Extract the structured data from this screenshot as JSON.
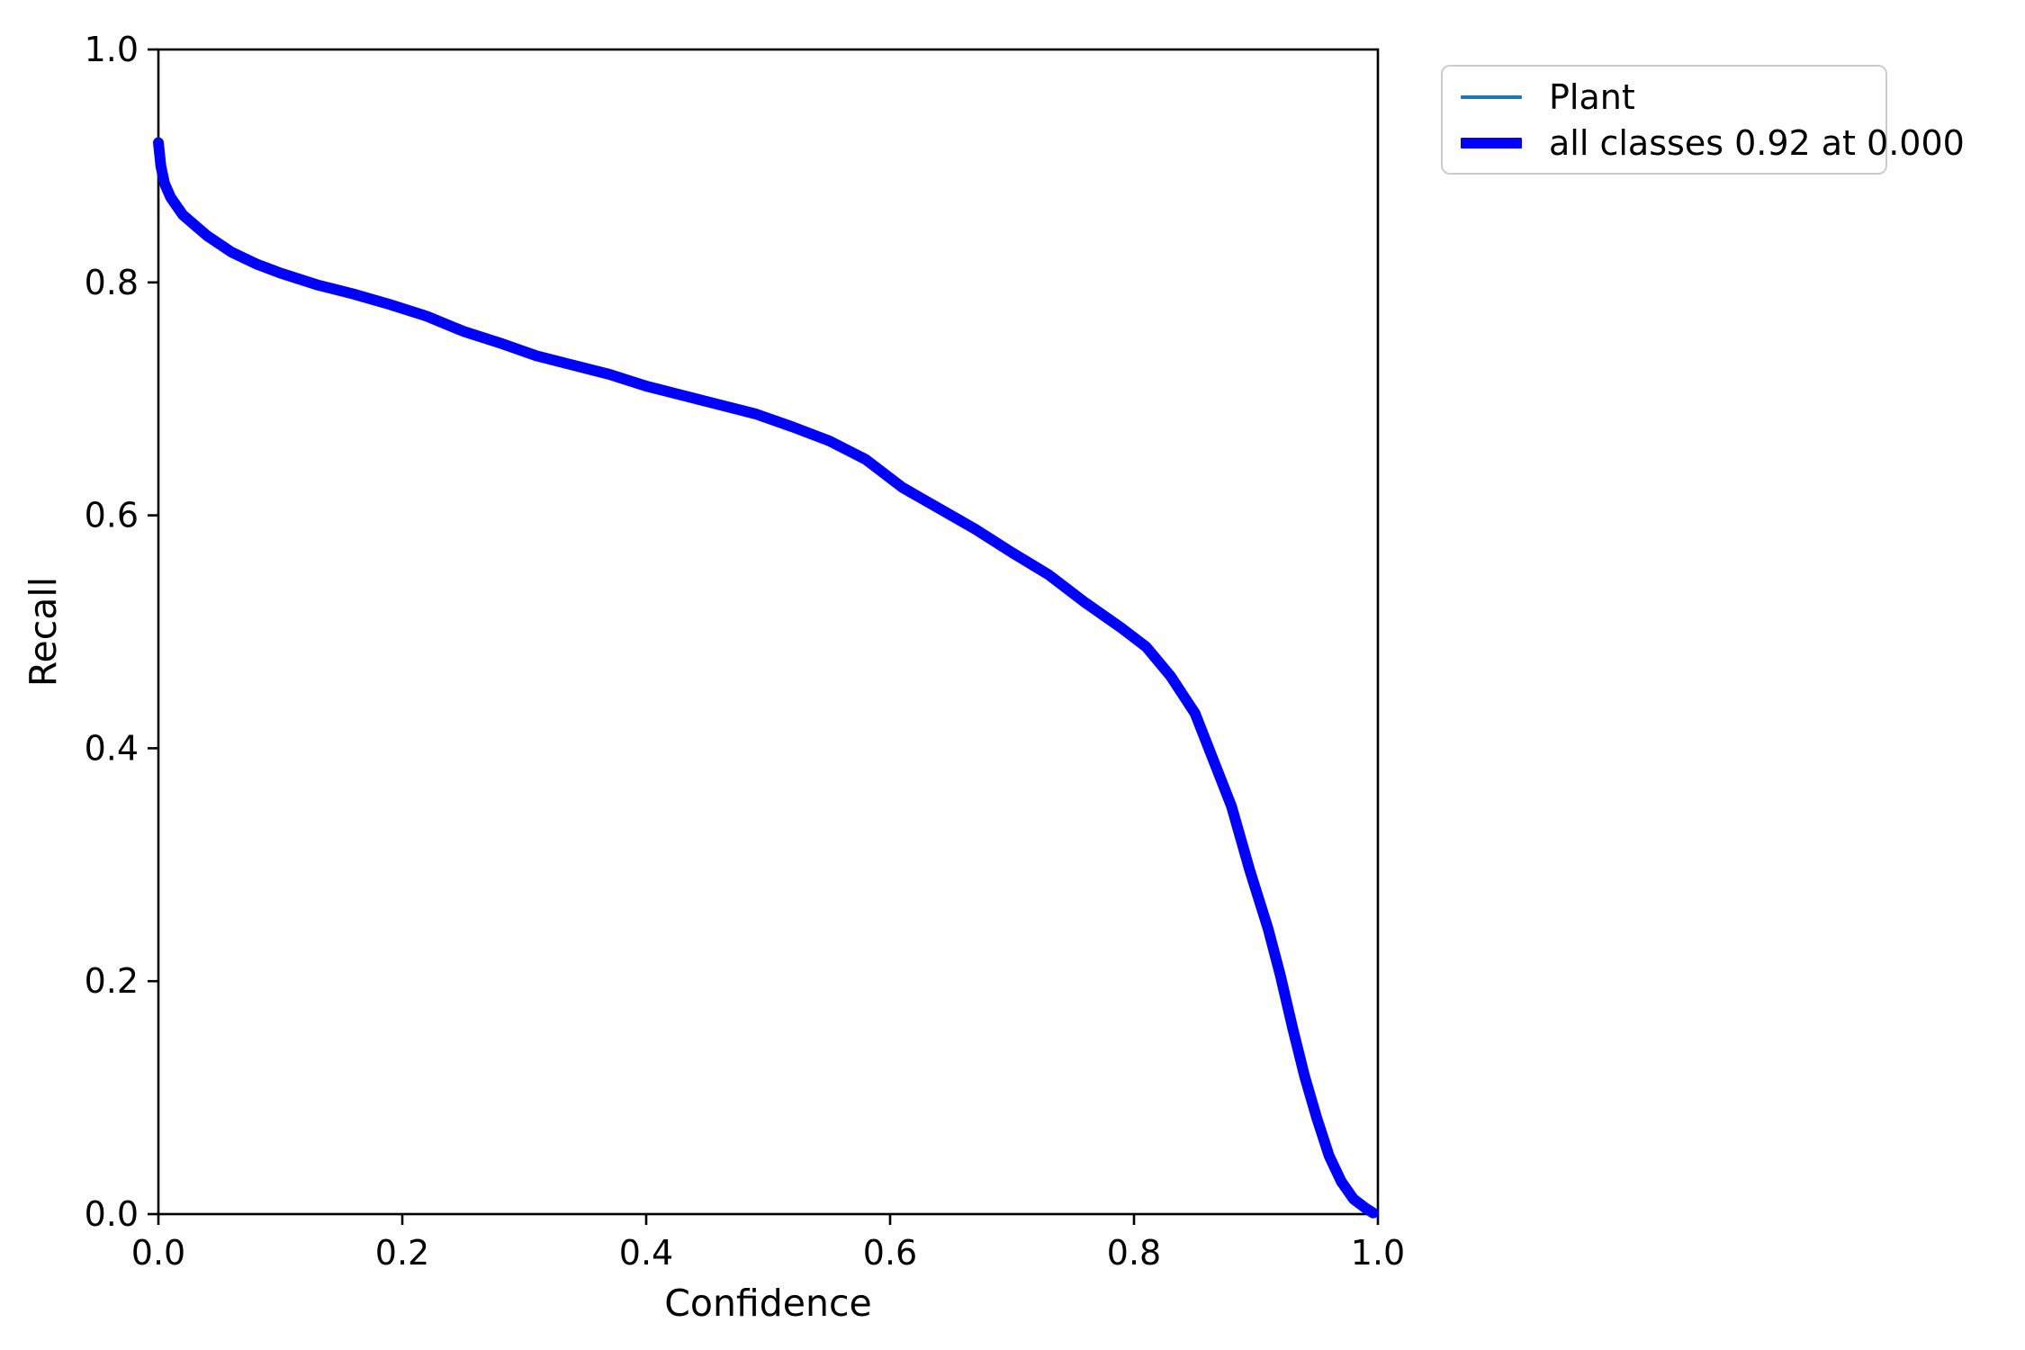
{
  "chart_data": {
    "type": "line",
    "title": "",
    "xlabel": "Confidence",
    "ylabel": "Recall",
    "xlim": [
      0.0,
      1.0
    ],
    "ylim": [
      0.0,
      1.0
    ],
    "grid": false,
    "legend_position": "upper right, outside axes",
    "xticks": [
      "0.0",
      "0.2",
      "0.4",
      "0.6",
      "0.8",
      "1.0"
    ],
    "yticks": [
      "0.0",
      "0.2",
      "0.4",
      "0.6",
      "0.8",
      "1.0"
    ],
    "x": [
      0.0,
      0.002,
      0.005,
      0.01,
      0.02,
      0.03,
      0.04,
      0.06,
      0.08,
      0.1,
      0.13,
      0.16,
      0.19,
      0.22,
      0.25,
      0.28,
      0.31,
      0.34,
      0.37,
      0.4,
      0.43,
      0.46,
      0.49,
      0.52,
      0.55,
      0.58,
      0.61,
      0.64,
      0.67,
      0.7,
      0.73,
      0.76,
      0.79,
      0.81,
      0.83,
      0.85,
      0.865,
      0.88,
      0.895,
      0.91,
      0.92,
      0.93,
      0.94,
      0.95,
      0.96,
      0.97,
      0.98,
      0.99,
      0.996
    ],
    "series": [
      {
        "name": "Plant",
        "color": "#1f77b4",
        "linewidth": 4,
        "y": [
          0.92,
          0.9,
          0.885,
          0.873,
          0.858,
          0.849,
          0.84,
          0.826,
          0.816,
          0.808,
          0.798,
          0.79,
          0.781,
          0.771,
          0.758,
          0.748,
          0.737,
          0.729,
          0.721,
          0.711,
          0.703,
          0.695,
          0.687,
          0.676,
          0.664,
          0.648,
          0.624,
          0.606,
          0.588,
          0.568,
          0.549,
          0.525,
          0.503,
          0.487,
          0.462,
          0.43,
          0.39,
          0.35,
          0.295,
          0.245,
          0.205,
          0.16,
          0.118,
          0.082,
          0.05,
          0.028,
          0.013,
          0.005,
          0.001
        ]
      },
      {
        "name": "all classes 0.92 at 0.000",
        "color": "#0000ff",
        "linewidth": 12,
        "y": [
          0.92,
          0.9,
          0.885,
          0.873,
          0.858,
          0.849,
          0.84,
          0.826,
          0.816,
          0.808,
          0.798,
          0.79,
          0.781,
          0.771,
          0.758,
          0.748,
          0.737,
          0.729,
          0.721,
          0.711,
          0.703,
          0.695,
          0.687,
          0.676,
          0.664,
          0.648,
          0.624,
          0.606,
          0.588,
          0.568,
          0.549,
          0.525,
          0.503,
          0.487,
          0.462,
          0.43,
          0.39,
          0.35,
          0.295,
          0.245,
          0.205,
          0.16,
          0.118,
          0.082,
          0.05,
          0.028,
          0.013,
          0.005,
          0.001
        ]
      }
    ],
    "legend": [
      {
        "label": "Plant",
        "color": "#1f77b4",
        "linewidth": 4
      },
      {
        "label": "all classes 0.92 at 0.000",
        "color": "#0000ff",
        "linewidth": 12
      }
    ],
    "annotations": {
      "best_recall": "0.92",
      "best_confidence": "0.000"
    }
  },
  "style": {
    "axis_color": "#000000",
    "text_color": "#000000",
    "background": "#ffffff",
    "legend_border": "#cccccc"
  }
}
